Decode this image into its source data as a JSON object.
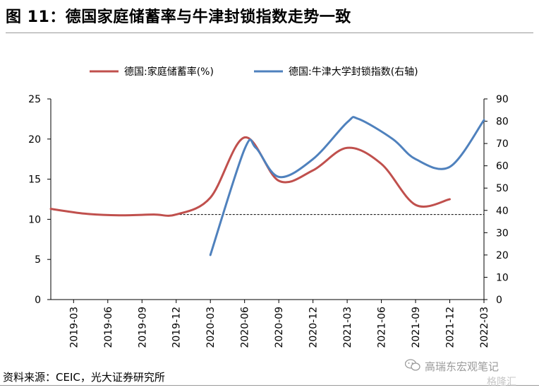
{
  "header": {
    "title": "图 11：德国家庭储蓄率与牛津封锁指数走势一致"
  },
  "footer": {
    "source": "资料来源：CEIC，光大证券研究所"
  },
  "watermark": {
    "line1": "高瑞东宏观笔记",
    "line2": "格隆汇"
  },
  "chart_data": {
    "type": "line",
    "x_ticks": [
      "2019-03",
      "2019-06",
      "2019-09",
      "2019-12",
      "2020-03",
      "2020-06",
      "2020-09",
      "2020-12",
      "2021-03",
      "2021-06",
      "2021-09",
      "2021-12",
      "2022-03"
    ],
    "left_axis": {
      "ylim": [
        0,
        25
      ],
      "ticks": [
        0,
        5,
        10,
        15,
        20,
        25
      ]
    },
    "right_axis": {
      "ylim": [
        0,
        90
      ],
      "ticks": [
        0,
        10,
        20,
        30,
        40,
        50,
        60,
        70,
        80,
        90
      ]
    },
    "legend_position": "top",
    "series": [
      {
        "name": "德国:家庭储蓄率(%)",
        "axis": "left",
        "color": "#C0504D",
        "x": [
          "2019-01",
          "2019-04",
          "2019-07",
          "2019-10",
          "2019-12",
          "2020-03",
          "2020-06",
          "2020-09",
          "2020-12",
          "2021-03",
          "2021-06",
          "2021-09",
          "2021-12"
        ],
        "values": [
          11.3,
          10.7,
          10.5,
          10.6,
          10.6,
          12.7,
          20.2,
          14.8,
          16.1,
          18.9,
          16.9,
          11.8,
          12.5
        ]
      },
      {
        "name": "德国:牛津大学封锁指数(右轴)",
        "axis": "right",
        "color": "#4F81BD",
        "x": [
          "2020-03",
          "2020-06",
          "2020-07",
          "2020-09",
          "2020-12",
          "2021-03",
          "2021-04",
          "2021-07",
          "2021-09",
          "2021-12",
          "2022-03"
        ],
        "values": [
          20,
          67.5,
          68,
          55,
          63,
          79.5,
          81,
          72,
          63,
          59.5,
          80.5
        ]
      }
    ],
    "reference_line": {
      "axis": "left",
      "value": 10.6,
      "x_start": "2019-12",
      "x_end": "2022-03",
      "style": "dashed"
    }
  }
}
